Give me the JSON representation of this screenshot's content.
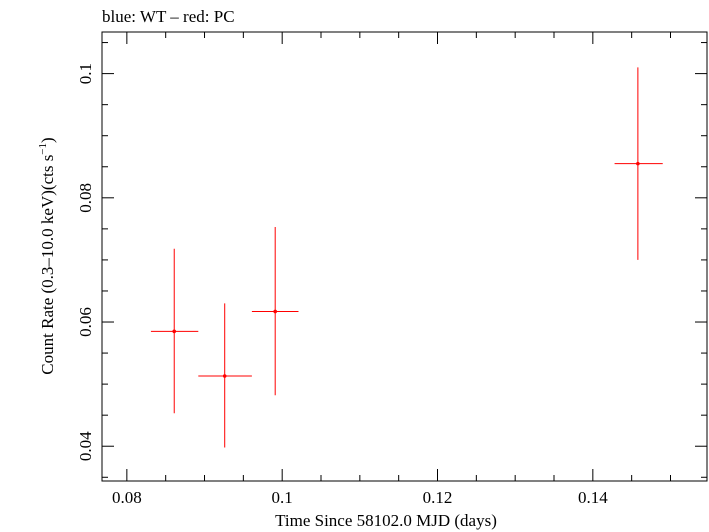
{
  "chart_data": {
    "type": "scatter",
    "title": "blue: WT – red: PC",
    "xlabel": "Time Since 58102.0 MJD (days)",
    "ylabel_main": "Count Rate (0.3–10.0 keV)(cts s",
    "ylabel_sup": "−1",
    "ylabel_close": ")",
    "xlim": [
      0.0768,
      0.1547
    ],
    "ylim": [
      0.0344,
      0.1067
    ],
    "xticks": [
      {
        "value": 0.08,
        "label": "0.08"
      },
      {
        "value": 0.1,
        "label": "0.1"
      },
      {
        "value": 0.12,
        "label": "0.12"
      },
      {
        "value": 0.14,
        "label": "0.14"
      }
    ],
    "yticks": [
      {
        "value": 0.04,
        "label": "0.04"
      },
      {
        "value": 0.06,
        "label": "0.06"
      },
      {
        "value": 0.08,
        "label": "0.08"
      },
      {
        "value": 0.1,
        "label": "0.1"
      }
    ],
    "series": [
      {
        "name": "WT",
        "color": "#0000ff",
        "points": []
      },
      {
        "name": "PC",
        "color": "#ff0000",
        "points": [
          {
            "x": 0.0861,
            "xlo": 0.0831,
            "xhi": 0.0892,
            "y": 0.0585,
            "ylo": 0.0453,
            "yhi": 0.0718
          },
          {
            "x": 0.0926,
            "xlo": 0.0892,
            "xhi": 0.0961,
            "y": 0.0513,
            "ylo": 0.0398,
            "yhi": 0.063
          },
          {
            "x": 0.0991,
            "xlo": 0.0961,
            "xhi": 0.1021,
            "y": 0.0617,
            "ylo": 0.0482,
            "yhi": 0.0753
          },
          {
            "x": 0.1458,
            "xlo": 0.1428,
            "xhi": 0.149,
            "y": 0.0855,
            "ylo": 0.07,
            "yhi": 0.101
          }
        ]
      }
    ]
  }
}
